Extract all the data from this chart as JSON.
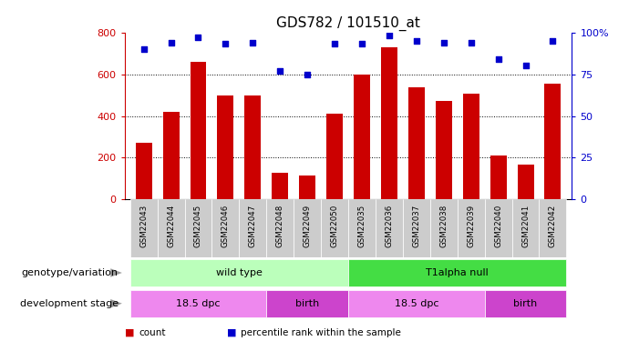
{
  "title": "GDS782 / 101510_at",
  "samples": [
    "GSM22043",
    "GSM22044",
    "GSM22045",
    "GSM22046",
    "GSM22047",
    "GSM22048",
    "GSM22049",
    "GSM22050",
    "GSM22035",
    "GSM22036",
    "GSM22037",
    "GSM22038",
    "GSM22039",
    "GSM22040",
    "GSM22041",
    "GSM22042"
  ],
  "counts": [
    270,
    420,
    660,
    500,
    500,
    130,
    115,
    410,
    600,
    730,
    535,
    470,
    505,
    210,
    165,
    555
  ],
  "percentiles": [
    90,
    94,
    97,
    93,
    94,
    77,
    75,
    93,
    93,
    98,
    95,
    94,
    94,
    84,
    80,
    95
  ],
  "bar_color": "#cc0000",
  "dot_color": "#0000cc",
  "ylim_left": [
    0,
    800
  ],
  "ylim_right": [
    0,
    100
  ],
  "yticks_left": [
    0,
    200,
    400,
    600,
    800
  ],
  "yticks_right": [
    0,
    25,
    50,
    75,
    100
  ],
  "yticklabels_right": [
    "0",
    "25",
    "50",
    "75",
    "100%"
  ],
  "grid_lines": [
    200,
    400,
    600
  ],
  "genotype_groups": [
    {
      "label": "wild type",
      "start": 0,
      "end": 8,
      "color": "#bbffbb"
    },
    {
      "label": "T1alpha null",
      "start": 8,
      "end": 16,
      "color": "#44dd44"
    }
  ],
  "stage_groups": [
    {
      "label": "18.5 dpc",
      "start": 0,
      "end": 5,
      "color": "#ee88ee"
    },
    {
      "label": "birth",
      "start": 5,
      "end": 8,
      "color": "#cc44cc"
    },
    {
      "label": "18.5 dpc",
      "start": 8,
      "end": 13,
      "color": "#ee88ee"
    },
    {
      "label": "birth",
      "start": 13,
      "end": 16,
      "color": "#cc44cc"
    }
  ],
  "legend_items": [
    {
      "label": "count",
      "color": "#cc0000"
    },
    {
      "label": "percentile rank within the sample",
      "color": "#0000cc"
    }
  ],
  "label_genotype": "genotype/variation",
  "label_stage": "development stage",
  "bg_color": "#ffffff",
  "plot_bg": "#ffffff",
  "xtick_bg": "#cccccc",
  "bar_width": 0.6
}
